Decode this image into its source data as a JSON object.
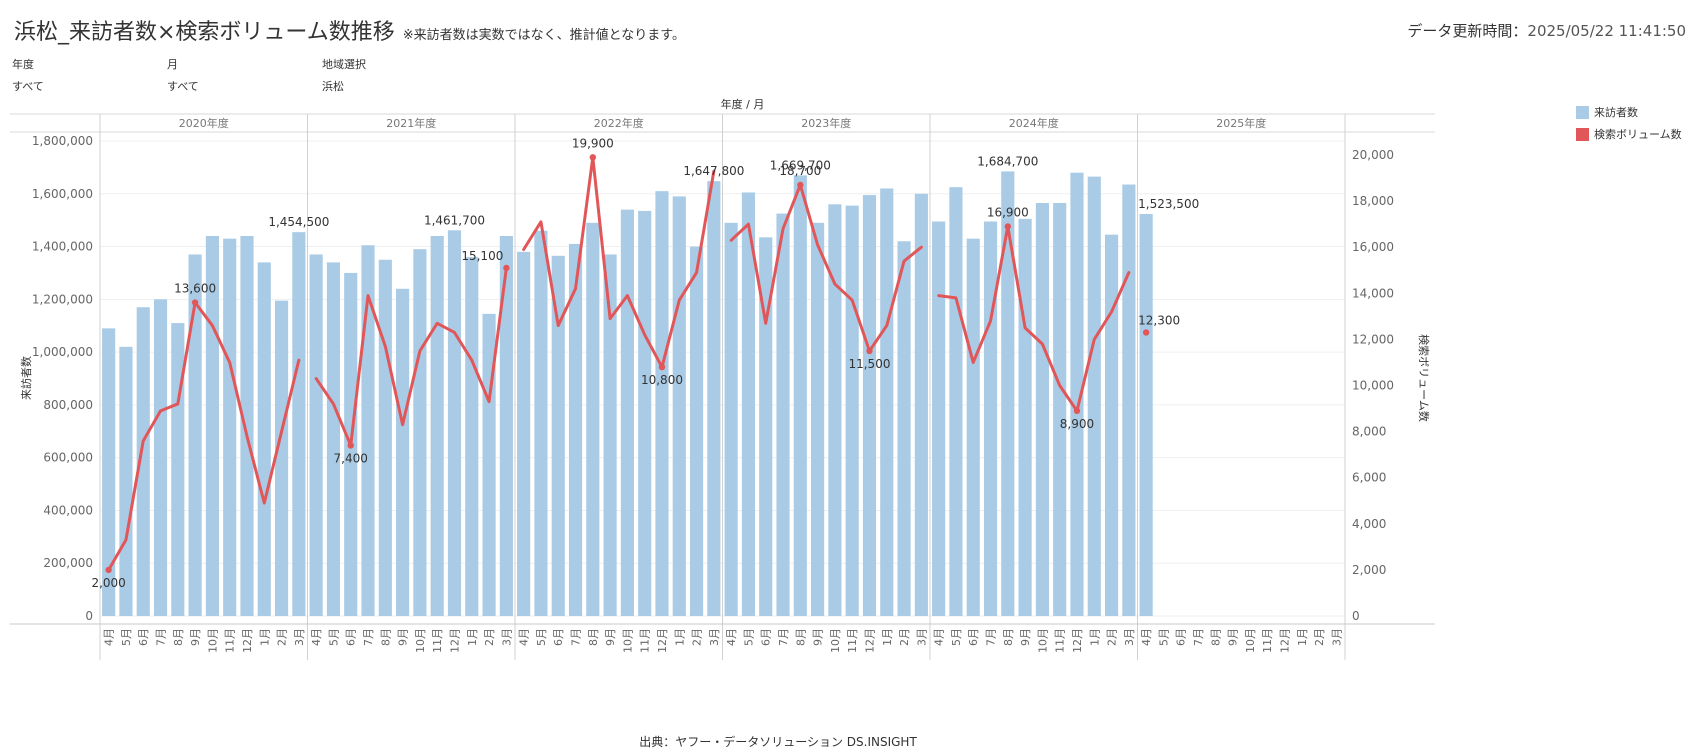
{
  "header": {
    "title": "浜松_来訪者数×検索ボリューム数推移",
    "note": "※来訪者数は実数ではなく、推計値となります。",
    "updated_label": "データ更新時間：",
    "updated_value": "2025/05/22 11:41:50"
  },
  "filters": [
    {
      "label": "年度",
      "value": "すべて"
    },
    {
      "label": "月",
      "value": "すべて"
    },
    {
      "label": "地域選択",
      "value": "浜松"
    }
  ],
  "legend": [
    {
      "label": "来訪者数",
      "color": "#a9cbe5"
    },
    {
      "label": "検索ボリューム数",
      "color": "#e15759"
    }
  ],
  "source": "出典：ヤフー・データソリューション DS.INSIGHT",
  "chart_data": {
    "type": "bar+line",
    "title": "年度 / 月",
    "ylabel": "来訪者数",
    "y2label": "検索ボリューム数",
    "ylim": [
      0,
      1800000
    ],
    "yticks": [
      0,
      200000,
      400000,
      600000,
      800000,
      1000000,
      1200000,
      1400000,
      1600000,
      1800000
    ],
    "ytick_labels": [
      "0",
      "200,000",
      "400,000",
      "600,000",
      "800,000",
      "1,000,000",
      "1,200,000",
      "1,400,000",
      "1,600,000",
      "1,800,000"
    ],
    "y2lim": [
      0,
      20000
    ],
    "y2ticks": [
      0,
      2000,
      4000,
      6000,
      8000,
      10000,
      12000,
      14000,
      16000,
      18000,
      20000
    ],
    "y2tick_labels": [
      "0",
      "2,000",
      "4,000",
      "6,000",
      "8,000",
      "10,000",
      "12,000",
      "14,000",
      "16,000",
      "18,000",
      "20,000"
    ],
    "grid": true,
    "legend_position": "top-right",
    "colors": {
      "bar": "#a9cbe5",
      "line": "#e15759"
    },
    "months": [
      "4月",
      "5月",
      "6月",
      "7月",
      "8月",
      "9月",
      "10月",
      "11月",
      "12月",
      "1月",
      "2月",
      "3月"
    ],
    "years": [
      {
        "label": "2020年度",
        "visitors": [
          1090000,
          1020000,
          1170000,
          1200000,
          1110000,
          1370000,
          1440000,
          1430000,
          1440000,
          1340000,
          1195000,
          1454500
        ],
        "search": [
          2000,
          3300,
          7600,
          8900,
          9200,
          13600,
          12600,
          11000,
          7800,
          4900,
          8000,
          11100
        ]
      },
      {
        "label": "2021年度",
        "visitors": [
          1370000,
          1340000,
          1300000,
          1405000,
          1350000,
          1240000,
          1390000,
          1440000,
          1461700,
          1360000,
          1145000,
          1440000
        ],
        "search": [
          10300,
          9200,
          7400,
          13900,
          11700,
          8300,
          11500,
          12700,
          12300,
          11100,
          9300,
          15100
        ]
      },
      {
        "label": "2022年度",
        "visitors": [
          1380000,
          1460000,
          1365000,
          1410000,
          1490000,
          1370000,
          1540000,
          1535000,
          1610000,
          1590000,
          1400000,
          1647800
        ],
        "search": [
          15900,
          17100,
          12600,
          14200,
          19900,
          12900,
          13900,
          12200,
          10800,
          13700,
          14900,
          19300
        ]
      },
      {
        "label": "2023年度",
        "visitors": [
          1490000,
          1605000,
          1435000,
          1525000,
          1669700,
          1490000,
          1560000,
          1555000,
          1595000,
          1620000,
          1420000,
          1600000
        ],
        "search": [
          16300,
          17000,
          12700,
          16800,
          18700,
          16100,
          14400,
          13700,
          11500,
          12600,
          15400,
          16000
        ]
      },
      {
        "label": "2024年度",
        "visitors": [
          1495000,
          1625000,
          1430000,
          1495000,
          1684700,
          1505000,
          1565000,
          1565000,
          1680000,
          1665000,
          1445000,
          1635000
        ],
        "search": [
          13900,
          13800,
          11000,
          12800,
          16900,
          12500,
          11800,
          10000,
          8900,
          12000,
          13200,
          14900
        ]
      },
      {
        "label": "2025年度",
        "visitors": [
          1523500,
          null,
          null,
          null,
          null,
          null,
          null,
          null,
          null,
          null,
          null,
          null
        ],
        "search": [
          12300,
          null,
          null,
          null,
          null,
          null,
          null,
          null,
          null,
          null,
          null,
          null
        ]
      }
    ],
    "bar_labels": [
      {
        "year": 0,
        "month": 11,
        "text": "1,454,500"
      },
      {
        "year": 1,
        "month": 8,
        "text": "1,461,700"
      },
      {
        "year": 2,
        "month": 11,
        "text": "1,647,800"
      },
      {
        "year": 3,
        "month": 4,
        "text": "1,669,700"
      },
      {
        "year": 4,
        "month": 4,
        "text": "1,684,700"
      },
      {
        "year": 5,
        "month": 0,
        "text": "1,523,500"
      }
    ],
    "line_labels": [
      {
        "year": 0,
        "month": 0,
        "text": "2,000",
        "pos": "below"
      },
      {
        "year": 0,
        "month": 5,
        "text": "13,600",
        "pos": "above"
      },
      {
        "year": 1,
        "month": 2,
        "text": "7,400",
        "pos": "below"
      },
      {
        "year": 1,
        "month": 11,
        "text": "15,100",
        "pos": "above-left"
      },
      {
        "year": 2,
        "month": 4,
        "text": "19,900",
        "pos": "above"
      },
      {
        "year": 2,
        "month": 8,
        "text": "10,800",
        "pos": "below"
      },
      {
        "year": 3,
        "month": 4,
        "text": "18,700",
        "pos": "above"
      },
      {
        "year": 3,
        "month": 8,
        "text": "11,500",
        "pos": "below"
      },
      {
        "year": 4,
        "month": 4,
        "text": "16,900",
        "pos": "above"
      },
      {
        "year": 4,
        "month": 8,
        "text": "8,900",
        "pos": "below"
      },
      {
        "year": 5,
        "month": 0,
        "text": "12,300",
        "pos": "above-right"
      }
    ]
  }
}
